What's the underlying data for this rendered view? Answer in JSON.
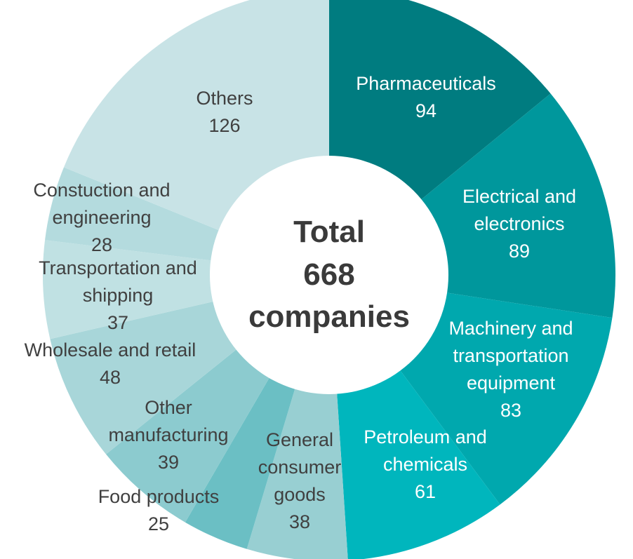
{
  "chart_data": {
    "type": "pie",
    "variant": "donut",
    "center_text": [
      "Total",
      "668",
      "companies"
    ],
    "total": 668,
    "slices": [
      {
        "label_lines": [
          "Pharmaceuticals"
        ],
        "value": 94,
        "color": "#007c80",
        "text_color": "#ffffff"
      },
      {
        "label_lines": [
          "Electrical and",
          "electronics"
        ],
        "value": 89,
        "color": "#00979c",
        "text_color": "#ffffff"
      },
      {
        "label_lines": [
          "Machinery and",
          "transportation",
          "equipment"
        ],
        "value": 83,
        "color": "#00a8ae",
        "text_color": "#ffffff"
      },
      {
        "label_lines": [
          "Petroleum and",
          "chemicals"
        ],
        "value": 61,
        "color": "#00b6bd",
        "text_color": "#ffffff"
      },
      {
        "label_lines": [
          "General",
          "consumer",
          "goods"
        ],
        "value": 38,
        "color": "#98cfd2",
        "text_color": "#404040"
      },
      {
        "label_lines": [
          "Food products"
        ],
        "value": 25,
        "color": "#6bbfc4",
        "text_color": "#404040"
      },
      {
        "label_lines": [
          "Other",
          "manufacturing"
        ],
        "value": 39,
        "color": "#8ccbcf",
        "text_color": "#404040"
      },
      {
        "label_lines": [
          "Wholesale and retail"
        ],
        "value": 48,
        "color": "#a8d6d9",
        "text_color": "#404040"
      },
      {
        "label_lines": [
          "Transportation and",
          "shipping"
        ],
        "value": 37,
        "color": "#c0e1e3",
        "text_color": "#404040"
      },
      {
        "label_lines": [
          "Constuction and",
          "engineering"
        ],
        "value": 28,
        "color": "#b4dbde",
        "text_color": "#404040"
      },
      {
        "label_lines": [
          "Others"
        ],
        "value": 126,
        "color": "#c8e3e6",
        "text_color": "#404040"
      }
    ]
  }
}
